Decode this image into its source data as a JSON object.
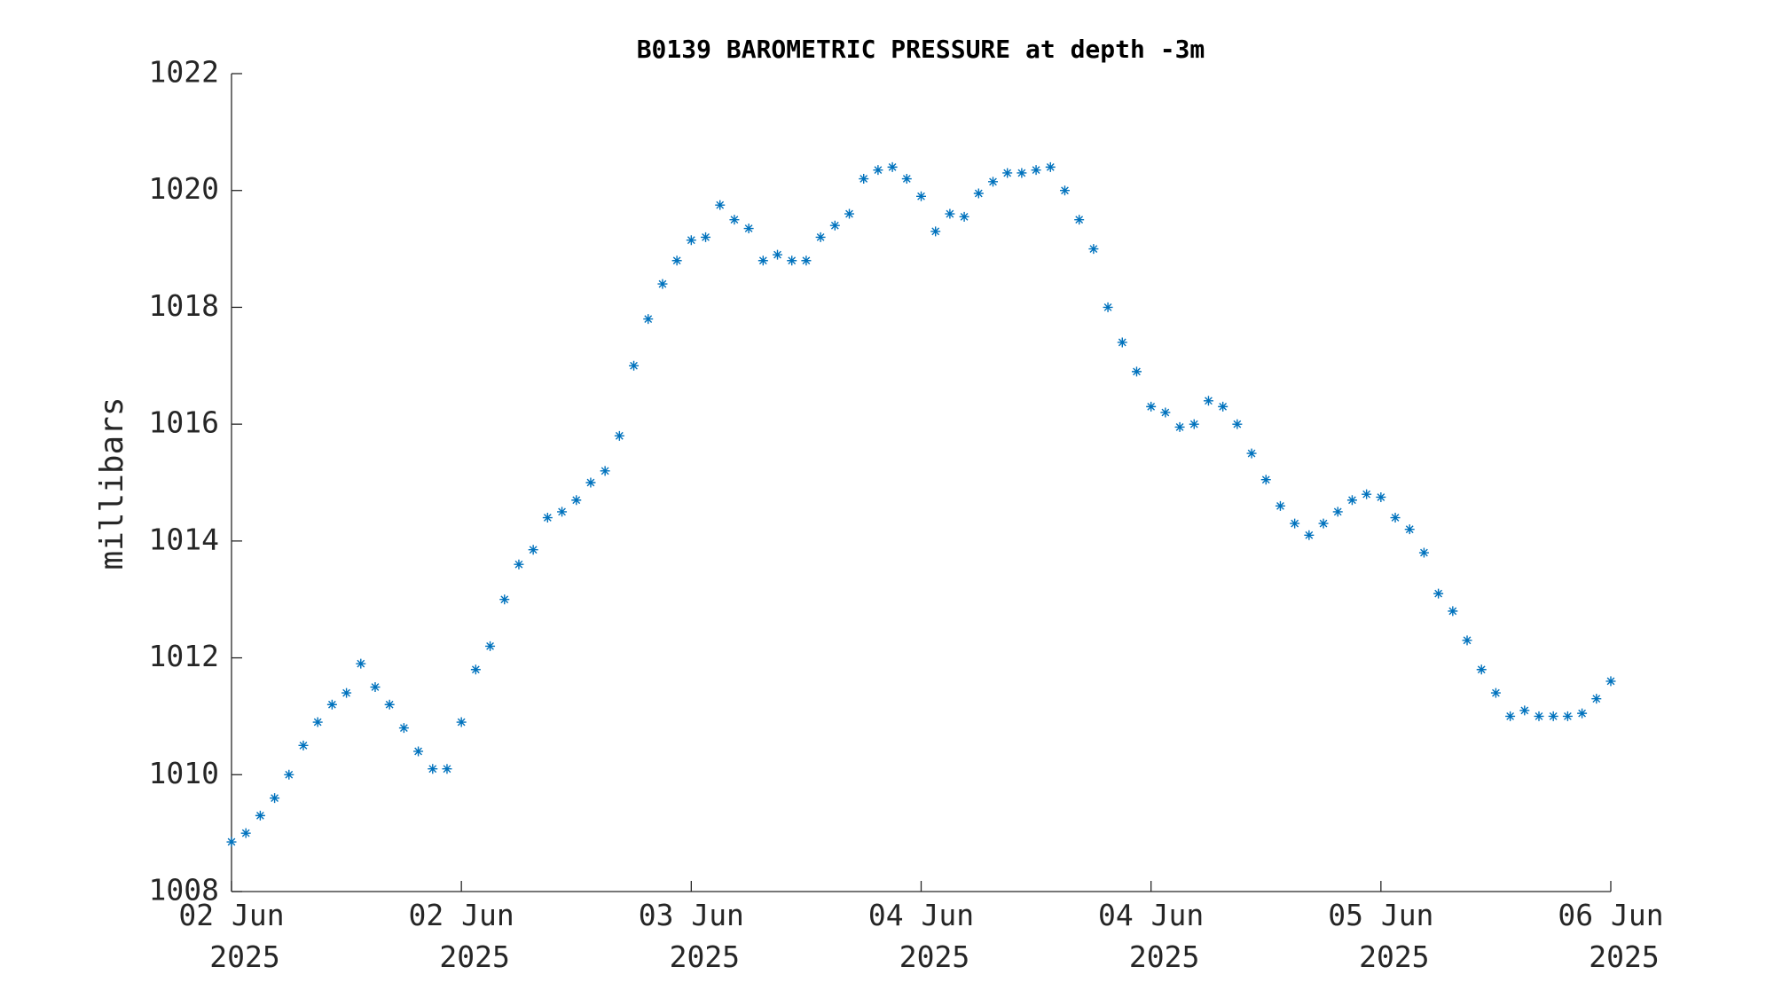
{
  "chart_data": {
    "type": "scatter",
    "title": "B0139 BAROMETRIC PRESSURE at depth -3m",
    "ylabel": "millibars",
    "marker": "asterisk",
    "color": "#0072bd",
    "xlim": [
      0,
      96
    ],
    "xticks": [
      {
        "value": 0,
        "label": "02 Jun\n2025"
      },
      {
        "value": 16,
        "label": "02 Jun\n2025"
      },
      {
        "value": 32,
        "label": "03 Jun\n2025"
      },
      {
        "value": 48,
        "label": "04 Jun\n2025"
      },
      {
        "value": 64,
        "label": "04 Jun\n2025"
      },
      {
        "value": 80,
        "label": "05 Jun\n2025"
      },
      {
        "value": 96,
        "label": "06 Jun\n2025"
      }
    ],
    "ylim": [
      1008,
      1022
    ],
    "yticks": [
      1008,
      1010,
      1012,
      1014,
      1016,
      1018,
      1020,
      1022
    ],
    "x": [
      0,
      1,
      2,
      3,
      4,
      5,
      6,
      7,
      8,
      9,
      10,
      11,
      12,
      13,
      14,
      15,
      16,
      17,
      18,
      19,
      20,
      21,
      22,
      23,
      24,
      25,
      26,
      27,
      28,
      29,
      30,
      31,
      32,
      33,
      34,
      35,
      36,
      37,
      38,
      39,
      40,
      41,
      42,
      43,
      44,
      45,
      46,
      47,
      48,
      49,
      50,
      51,
      52,
      53,
      54,
      55,
      56,
      57,
      58,
      59,
      60,
      61,
      62,
      63,
      64,
      65,
      66,
      67,
      68,
      69,
      70,
      71,
      72,
      73,
      74,
      75,
      76,
      77,
      78,
      79,
      80,
      81,
      82,
      83,
      84,
      85,
      86,
      87,
      88,
      89,
      90,
      91,
      92,
      93,
      94,
      95,
      96
    ],
    "values": [
      1008.85,
      1009.0,
      1009.3,
      1009.6,
      1010.0,
      1010.5,
      1010.9,
      1011.2,
      1011.4,
      1011.9,
      1011.5,
      1011.2,
      1010.8,
      1010.4,
      1010.1,
      1010.1,
      1010.9,
      1011.8,
      1012.2,
      1013.0,
      1013.6,
      1013.85,
      1014.4,
      1014.5,
      1014.7,
      1015.0,
      1015.2,
      1015.8,
      1017.0,
      1017.8,
      1018.4,
      1018.8,
      1019.15,
      1019.2,
      1019.75,
      1019.5,
      1019.35,
      1018.8,
      1018.9,
      1018.8,
      1018.8,
      1019.2,
      1019.4,
      1019.6,
      1020.2,
      1020.35,
      1020.4,
      1020.2,
      1019.9,
      1019.3,
      1019.6,
      1019.55,
      1019.95,
      1020.15,
      1020.3,
      1020.3,
      1020.35,
      1020.4,
      1020.0,
      1019.5,
      1019.0,
      1018.0,
      1017.4,
      1016.9,
      1016.3,
      1016.2,
      1015.95,
      1016.0,
      1016.4,
      1016.3,
      1016.0,
      1015.5,
      1015.05,
      1014.6,
      1014.3,
      1014.1,
      1014.3,
      1014.5,
      1014.7,
      1014.8,
      1014.75,
      1014.4,
      1014.2,
      1013.8,
      1013.1,
      1012.8,
      1012.3,
      1011.8,
      1011.4,
      1011.0,
      1011.1,
      1011.0,
      1011.0,
      1011.0,
      1011.05,
      1011.3,
      1011.6
    ]
  }
}
